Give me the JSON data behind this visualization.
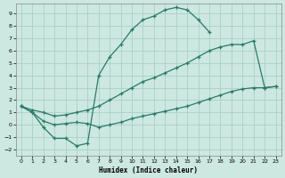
{
  "xlabel": "Humidex (Indice chaleur)",
  "background_color": "#cce8e0",
  "grid_color": "#aacfc8",
  "line_color": "#2a7a6a",
  "ylim": [
    -2.5,
    9.8
  ],
  "xlim": [
    -0.5,
    23.5
  ],
  "line1_x": [
    0,
    1,
    2,
    3,
    4,
    5,
    6,
    7,
    8,
    9,
    10,
    11,
    12,
    13,
    14,
    15,
    16,
    17
  ],
  "line1_y": [
    1.5,
    1.0,
    -0.2,
    -1.1,
    -1.1,
    -1.7,
    -1.5,
    4.0,
    5.5,
    6.5,
    7.7,
    8.5,
    8.8,
    9.3,
    9.5,
    9.3,
    8.5,
    7.5
  ],
  "line2_x": [
    0,
    1,
    2,
    3,
    4,
    5,
    6,
    7,
    8,
    9,
    10,
    11,
    12,
    13,
    14,
    15,
    16,
    17,
    18,
    19,
    20,
    21,
    22,
    23
  ],
  "line2_y": [
    1.5,
    1.2,
    1.0,
    0.7,
    0.8,
    1.0,
    1.2,
    1.5,
    2.0,
    2.5,
    3.0,
    3.5,
    3.8,
    4.2,
    4.6,
    5.0,
    5.5,
    6.0,
    6.3,
    6.5,
    6.5,
    6.8,
    3.0,
    3.1
  ],
  "line3_x": [
    0,
    1,
    2,
    3,
    4,
    5,
    6,
    7,
    8,
    9,
    10,
    11,
    12,
    13,
    14,
    15,
    16,
    17,
    18,
    19,
    20,
    21,
    22,
    23
  ],
  "line3_y": [
    1.5,
    1.0,
    0.3,
    0.0,
    0.1,
    0.2,
    0.1,
    -0.2,
    0.0,
    0.2,
    0.5,
    0.7,
    0.9,
    1.1,
    1.3,
    1.5,
    1.8,
    2.1,
    2.4,
    2.7,
    2.9,
    3.0,
    3.0,
    3.1
  ],
  "yticks": [
    -2,
    -1,
    0,
    1,
    2,
    3,
    4,
    5,
    6,
    7,
    8,
    9
  ],
  "xticks": [
    0,
    1,
    2,
    3,
    4,
    5,
    6,
    7,
    8,
    9,
    10,
    11,
    12,
    13,
    14,
    15,
    16,
    17,
    18,
    19,
    20,
    21,
    22,
    23
  ]
}
